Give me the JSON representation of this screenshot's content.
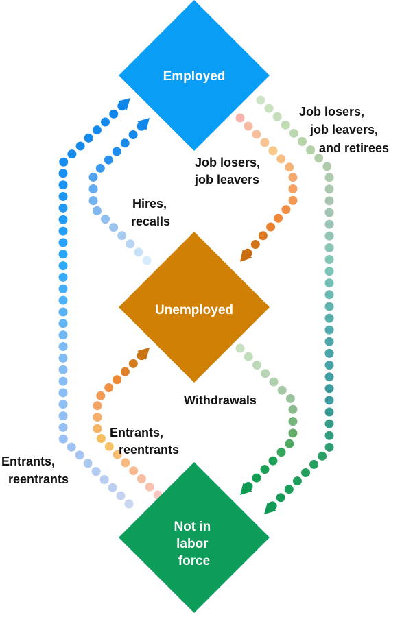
{
  "nodes": {
    "employed": {
      "label_lines": [
        "Employed"
      ],
      "color": "#0a9df5"
    },
    "unemployed": {
      "label_lines": [
        "Unemployed"
      ],
      "color": "#d18006"
    },
    "not_in_labor_force": {
      "label_lines": [
        "Not in",
        "labor",
        "force"
      ],
      "color": "#0d9c5a"
    }
  },
  "flows": {
    "hires_recalls": {
      "label_lines": [
        "Hires,",
        "recalls"
      ]
    },
    "job_losers_leavers": {
      "label_lines": [
        "Job losers,",
        "job leavers"
      ]
    },
    "job_losers_leavers_retirees": {
      "label_lines": [
        "Job losers,",
        "job leavers,",
        "and retirees"
      ]
    },
    "entrants_reentrants_to_unemployed": {
      "label_lines": [
        "Entrants,",
        "reentrants"
      ]
    },
    "withdrawals": {
      "label_lines": [
        "Withdrawals"
      ]
    },
    "entrants_reentrants_to_employed": {
      "label_lines": [
        "Entrants,",
        "reentrants"
      ]
    }
  }
}
